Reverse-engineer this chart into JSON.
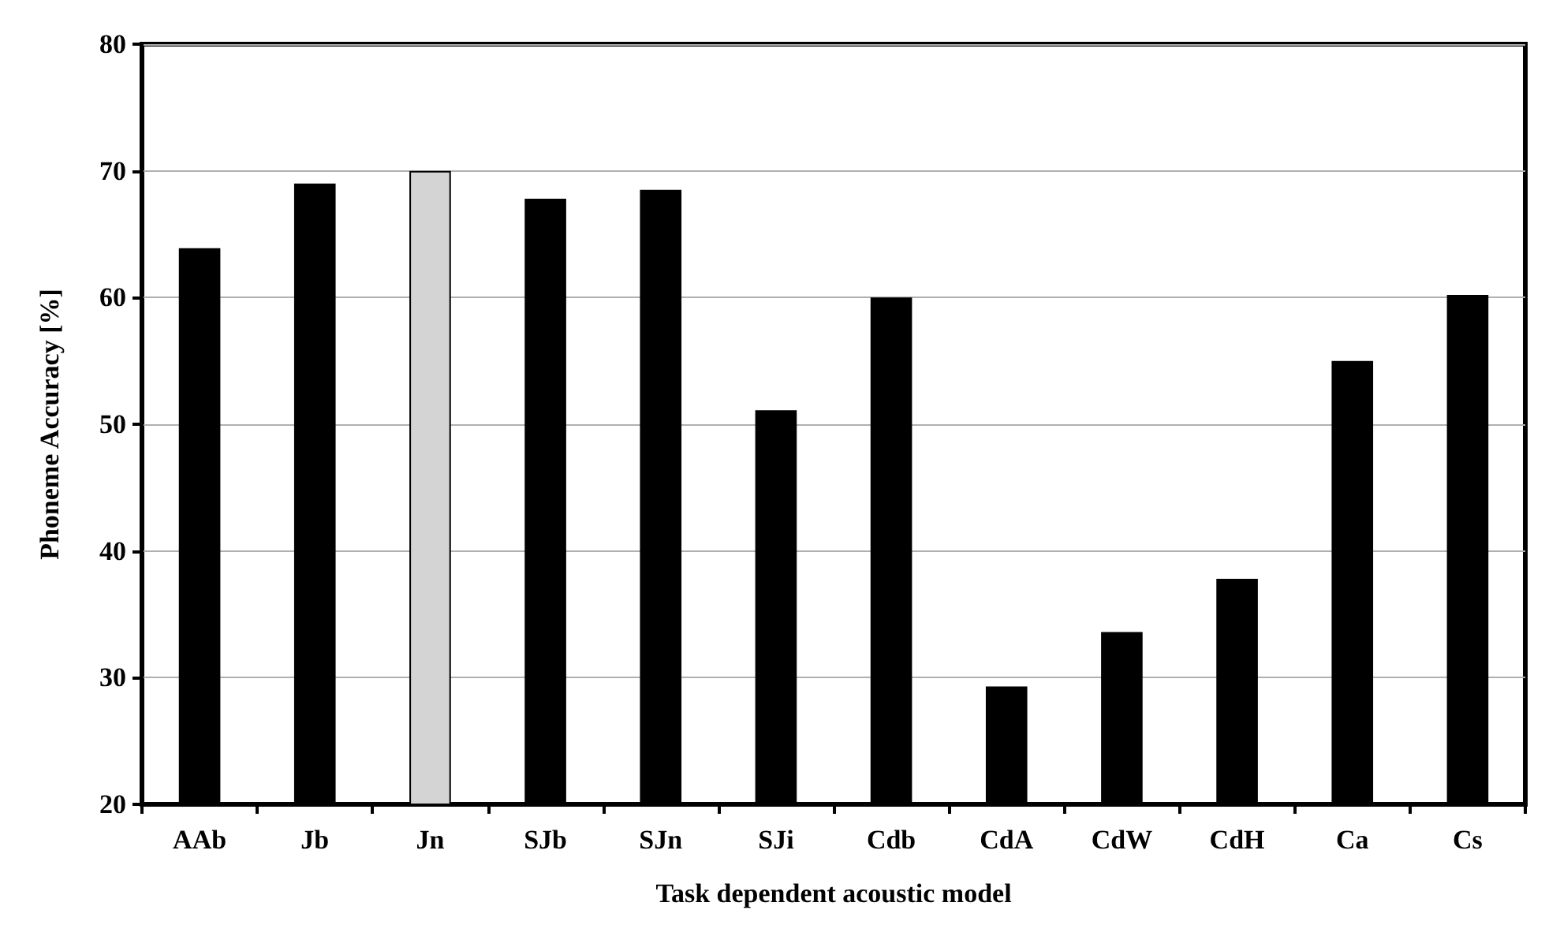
{
  "chart_data": {
    "type": "bar",
    "xlabel": "Task dependent acoustic model",
    "ylabel": "Phoneme Accuracy [%]",
    "categories": [
      "AAb",
      "Jb",
      "Jn",
      "SJb",
      "SJn",
      "SJi",
      "Cdb",
      "CdA",
      "CdW",
      "CdH",
      "Ca",
      "Cs"
    ],
    "values": [
      63.9,
      69,
      70,
      67.8,
      68.5,
      51.1,
      60,
      29.3,
      33.6,
      37.8,
      55,
      60.2
    ],
    "colors": [
      "#000000",
      "#000000",
      "#d4d4d4",
      "#000000",
      "#000000",
      "#000000",
      "#000000",
      "#000000",
      "#000000",
      "#000000",
      "#000000",
      "#000000"
    ],
    "ylim": [
      20,
      80
    ],
    "yticks": [
      20,
      30,
      40,
      50,
      60,
      70,
      80
    ],
    "grid": "y"
  }
}
